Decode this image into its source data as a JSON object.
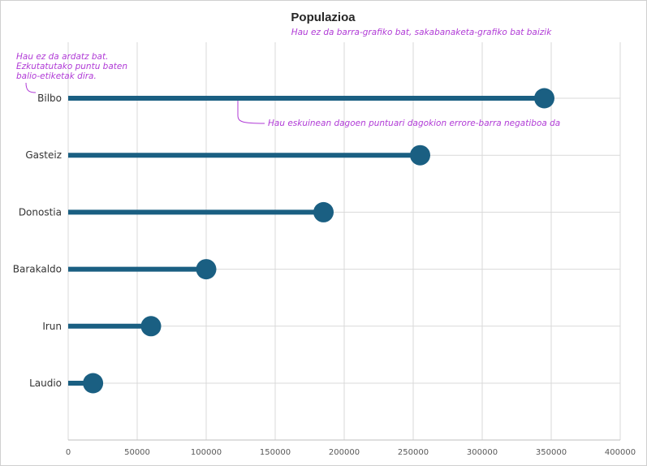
{
  "chart_data": {
    "type": "lollipop",
    "title": "Populazioa",
    "categories": [
      "Bilbo",
      "Gasteiz",
      "Donostia",
      "Barakaldo",
      "Irun",
      "Laudio"
    ],
    "values": [
      345000,
      255000,
      185000,
      100000,
      60000,
      18000
    ],
    "xlim": [
      0,
      400000
    ],
    "xticks": [
      0,
      50000,
      100000,
      150000,
      200000,
      250000,
      300000,
      350000,
      400000
    ],
    "xtick_labels": [
      "0",
      "50000",
      "100000",
      "150000",
      "200000",
      "250000",
      "300000",
      "350000",
      "400000"
    ],
    "grid": true,
    "series_color": "#1a5f82",
    "annotations": {
      "subtitle_note": "Hau ez da barra-grafiko bat, sakabanaketa-grafiko bat baizik",
      "axis_note": [
        "Hau ez da ardatz bat.",
        "Ezkutatutako puntu baten",
        "balio-etiketak dira."
      ],
      "errorbar_note": "Hau eskuinean dagoen puntuari dagokion errore-barra negatiboa da",
      "color": "#b03ad6"
    }
  }
}
